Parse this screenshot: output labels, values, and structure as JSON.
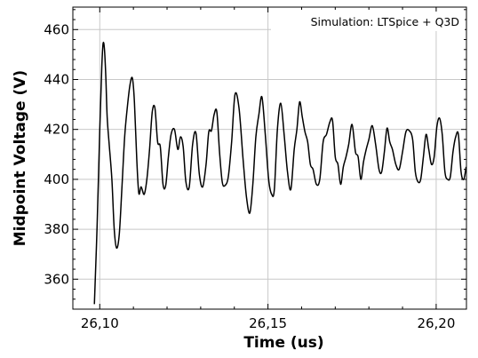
{
  "chart_data": {
    "type": "line",
    "title": "",
    "xlabel": "Time (us)",
    "ylabel": "Midpoint Voltage (V)",
    "legend_text": "Simulation: LTSpice + Q3D",
    "legend_placement": "top-right",
    "xlim": [
      26.092,
      26.209
    ],
    "ylim": [
      348,
      469
    ],
    "x_ticks": [
      26.1,
      26.15,
      26.2
    ],
    "x_tick_labels": [
      "26,10",
      "26,15",
      "26,20"
    ],
    "y_ticks": [
      360,
      380,
      400,
      420,
      440,
      460
    ],
    "y_tick_labels": [
      "360",
      "380",
      "400",
      "420",
      "440",
      "460"
    ],
    "grid": true,
    "series": [
      {
        "color": "#000000",
        "x": [
          26.0984,
          26.0992,
          26.1,
          26.1006,
          26.101,
          26.1014,
          26.1018,
          26.1022,
          26.1028,
          26.1036,
          26.1043,
          26.105,
          26.1058,
          26.1066,
          26.1074,
          26.1082,
          26.109,
          26.1097,
          26.1103,
          26.111,
          26.1116,
          26.1123,
          26.1132,
          26.114,
          26.1148,
          26.1156,
          26.1164,
          26.1172,
          26.118,
          26.1188,
          26.1196,
          26.1204,
          26.1212,
          26.1222,
          26.1232,
          26.124,
          26.1248,
          26.1256,
          26.1266,
          26.1276,
          26.1286,
          26.1296,
          26.1306,
          26.1316,
          26.1324,
          26.1332,
          26.134,
          26.1348,
          26.1356,
          26.1364,
          26.1372,
          26.1382,
          26.1392,
          26.1402,
          26.1414,
          26.1426,
          26.1436,
          26.1446,
          26.1455,
          26.1464,
          26.1473,
          26.1482,
          26.1492,
          26.1502,
          26.1511,
          26.1519,
          26.1528,
          26.1538,
          26.1548,
          26.1558,
          26.1568,
          26.1578,
          26.1586,
          26.1594,
          26.1602,
          26.161,
          26.1618,
          26.1626,
          26.1634,
          26.1644,
          26.1654,
          26.1664,
          26.1674,
          26.1684,
          26.1692,
          26.17,
          26.1708,
          26.1716,
          26.1724,
          26.1732,
          26.174,
          26.175,
          26.176,
          26.1768,
          26.1776,
          26.1784,
          26.1792,
          26.18,
          26.181,
          26.182,
          26.183,
          26.1838,
          26.1846,
          26.1854,
          26.1862,
          26.187,
          26.188,
          26.189,
          26.19,
          26.191,
          26.192,
          26.193,
          26.1938,
          26.1946,
          26.1954,
          26.1962,
          26.197,
          26.1978,
          26.1986,
          26.1994,
          26.2002,
          26.201,
          26.2018,
          26.2026,
          26.2034,
          26.2042,
          26.205,
          26.2058,
          26.2066,
          26.2074,
          26.2082,
          26.2089
        ],
        "y": [
          350,
          381,
          420,
          445,
          454.5,
          452,
          441,
          425,
          414,
          400,
          380,
          372.5,
          378,
          397,
          417,
          429,
          438,
          440.5,
          431,
          408,
          394.5,
          397,
          394,
          400,
          412,
          427,
          428.5,
          415,
          413,
          398,
          397.5,
          409,
          418,
          420,
          412,
          417,
          413,
          399,
          397,
          414,
          418.5,
          402,
          397,
          406,
          419,
          419.5,
          426,
          427,
          411,
          399,
          397.5,
          401,
          415,
          434,
          428.5,
          408,
          393,
          386.5,
          398,
          417,
          426,
          433,
          418,
          400,
          394,
          396,
          420,
          430.5,
          418,
          403,
          396,
          412,
          420,
          431,
          425,
          419,
          415,
          406,
          404,
          398,
          400,
          415,
          418,
          423,
          423.5,
          409,
          406,
          398,
          405,
          409,
          414,
          422,
          411,
          409,
          400,
          407,
          412,
          416,
          421.5,
          414,
          404,
          403,
          411,
          420.5,
          415,
          412,
          406,
          404,
          411,
          419,
          419.5,
          416,
          403,
          399,
          400,
          409,
          418,
          412,
          406,
          409,
          421,
          424.5,
          418,
          403,
          400,
          401,
          411,
          417,
          418,
          403,
          400,
          405
        ]
      }
    ]
  }
}
